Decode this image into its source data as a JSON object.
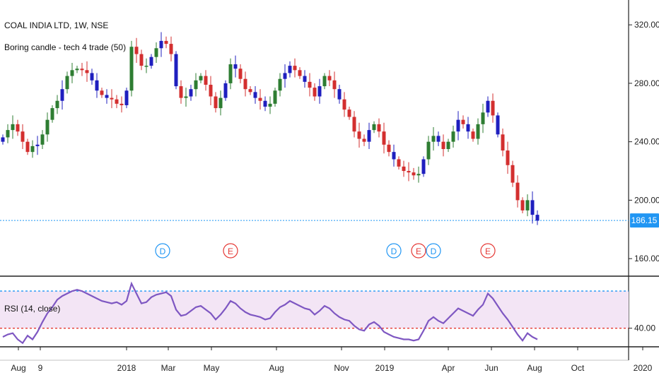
{
  "legend": {
    "symbol_title": "COAL INDIA LTD, 1W, NSE",
    "indicator_title": "Boring candle - tech 4 trade (50)"
  },
  "rsi_label": "RSI (14, close)",
  "colors": {
    "bull": "#2e7d32",
    "bear": "#d32f2f",
    "boring": "#1f1fbf",
    "rsi_line": "#7e57c2",
    "rsi_band": "#f3e5f5",
    "last_price_line": "#2196f3",
    "rsi_upper_line": "#2196f3",
    "rsi_lower_line": "#e53935",
    "dividend_marker": "#2196f3",
    "earnings_marker": "#e53935"
  },
  "chart_data": [
    {
      "type": "candlestick",
      "title": "COAL INDIA LTD, 1W, NSE",
      "x_unit": "week",
      "x_start": "2017-07-10",
      "y_axis_ticks": [
        "160.00",
        "200.00",
        "240.00",
        "280.00",
        "320.00"
      ],
      "ylim": [
        148,
        337
      ],
      "last_price": "186.15",
      "x_axis_ticks": [
        {
          "label": "Aug",
          "date": "2017-08-01"
        },
        {
          "label": "9",
          "date": "2017-09-01"
        },
        {
          "label": "2018",
          "date": "2018-01-01"
        },
        {
          "label": "Mar",
          "date": "2018-03-01"
        },
        {
          "label": "May",
          "date": "2018-05-01"
        },
        {
          "label": "Aug",
          "date": "2018-08-01"
        },
        {
          "label": "Nov",
          "date": "2018-11-01"
        },
        {
          "label": "2019",
          "date": "2019-01-01"
        },
        {
          "label": "Apr",
          "date": "2019-04-01"
        },
        {
          "label": "Jun",
          "date": "2019-06-01"
        },
        {
          "label": "Aug",
          "date": "2019-08-01"
        },
        {
          "label": "Oct",
          "date": "2019-10-01"
        },
        {
          "label": "2020",
          "date": "2020-01-01"
        }
      ],
      "events": [
        {
          "label": "D",
          "kind": "dividend",
          "date": "2018-02-21"
        },
        {
          "label": "E",
          "kind": "earnings",
          "date": "2018-05-28"
        },
        {
          "label": "D",
          "kind": "dividend",
          "date": "2019-01-14"
        },
        {
          "label": "E",
          "kind": "earnings",
          "date": "2019-02-18"
        },
        {
          "label": "D",
          "kind": "dividend",
          "date": "2019-03-11"
        },
        {
          "label": "E",
          "kind": "earnings",
          "date": "2019-05-27"
        }
      ],
      "close": [
        243,
        248,
        252,
        247,
        240,
        233,
        237,
        238,
        245,
        255,
        263,
        268,
        276,
        285,
        289,
        290,
        289,
        287,
        282,
        275,
        272,
        270,
        269,
        266,
        265,
        275,
        305,
        300,
        292,
        292,
        298,
        304,
        309,
        307,
        300,
        278,
        270,
        271,
        276,
        282,
        285,
        279,
        271,
        263,
        270,
        280,
        293,
        290,
        283,
        276,
        274,
        270,
        268,
        264,
        266,
        275,
        283,
        287,
        292,
        289,
        285,
        281,
        277,
        271,
        278,
        285,
        282,
        276,
        269,
        262,
        257,
        247,
        242,
        240,
        248,
        252,
        247,
        238,
        233,
        228,
        223,
        220,
        219,
        217,
        218,
        228,
        240,
        244,
        240,
        235,
        240,
        247,
        255,
        252,
        247,
        242,
        252,
        260,
        268,
        258,
        245,
        234,
        224,
        212,
        200,
        193,
        200,
        190,
        186
      ],
      "boring_candle_indices": [
        0,
        7,
        12,
        18,
        19,
        21,
        25,
        30,
        32,
        35,
        38,
        45,
        47,
        51,
        53,
        57,
        58,
        61,
        64,
        68,
        74,
        79,
        85,
        88,
        92,
        94,
        98,
        100,
        107,
        108
      ]
    },
    {
      "type": "line",
      "title": "RSI (14, close)",
      "x_unit": "week",
      "x_start": "2017-07-10",
      "y_axis_ticks": [
        "40.00"
      ],
      "upper_band": 70,
      "lower_band": 40,
      "ylim": [
        25,
        82
      ],
      "values": [
        33,
        35,
        36,
        31,
        28,
        34,
        31,
        37,
        45,
        52,
        57,
        63,
        66,
        68,
        70,
        71,
        70,
        68,
        66,
        64,
        62,
        61,
        60,
        61,
        59,
        62,
        76,
        68,
        60,
        61,
        65,
        67,
        68,
        69,
        66,
        55,
        50,
        51,
        54,
        57,
        58,
        55,
        52,
        47,
        51,
        56,
        62,
        60,
        56,
        53,
        51,
        50,
        49,
        47,
        48,
        53,
        57,
        59,
        62,
        60,
        58,
        56,
        55,
        51,
        54,
        58,
        56,
        52,
        49,
        47,
        46,
        42,
        39,
        38,
        43,
        45,
        42,
        37,
        35,
        33,
        32,
        31,
        31,
        30,
        31,
        38,
        46,
        49,
        46,
        44,
        48,
        52,
        56,
        54,
        52,
        50,
        55,
        59,
        68,
        64,
        58,
        52,
        47,
        41,
        35,
        30,
        36,
        33,
        31
      ]
    }
  ]
}
